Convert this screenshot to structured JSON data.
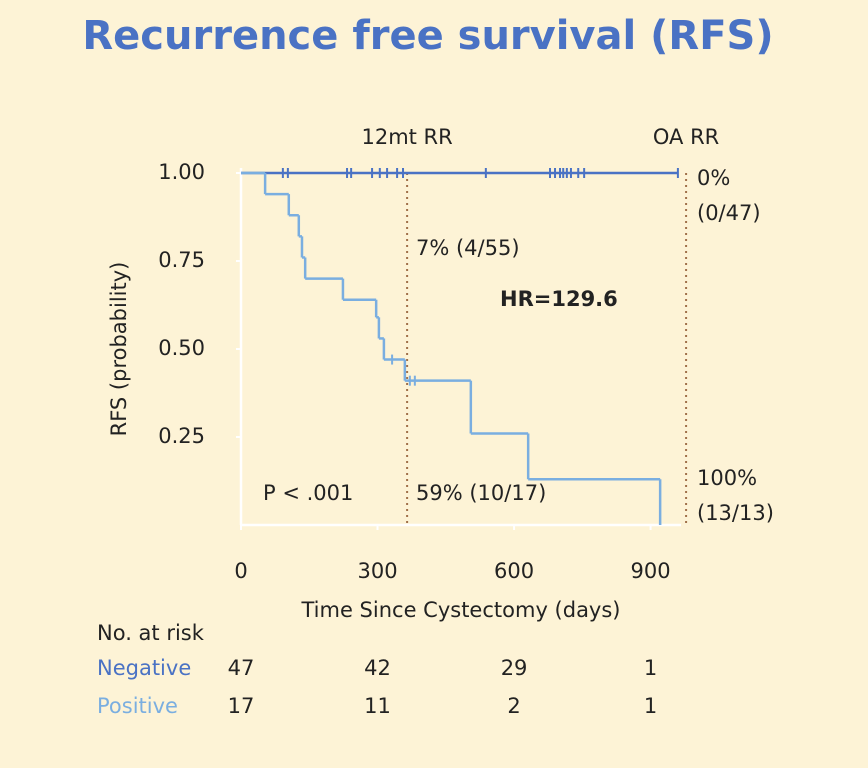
{
  "chart_data": {
    "type": "km",
    "title": "Recurrence free survival (RFS)",
    "x_label": "Time Since Cystectomy (days)",
    "y_label": "RFS (probability)",
    "xlim": [
      0,
      980
    ],
    "ylim": [
      0,
      1
    ],
    "xticks": [
      0,
      300,
      600,
      900
    ],
    "yticks": [
      {
        "value": 1,
        "label": "1.00"
      },
      {
        "value": 0.75,
        "label": "0.75"
      },
      {
        "value": 0.5,
        "label": "0.50"
      },
      {
        "value": 0.25,
        "label": "0.25"
      }
    ],
    "series": [
      {
        "name": "Negative",
        "color": "#4a72c4",
        "x": [
          0,
          960
        ],
        "values": [
          1,
          1
        ],
        "censor_x": [
          92,
          103,
          233,
          242,
          288,
          305,
          321,
          343,
          356,
          538,
          679,
          690,
          701,
          708,
          716,
          725,
          741,
          754,
          960
        ]
      },
      {
        "name": "Positive",
        "color": "#7aaee0",
        "x": [
          0,
          53,
          105,
          127,
          134,
          141,
          224,
          297,
          303,
          314,
          360,
          505,
          631,
          921
        ],
        "values": [
          1,
          0.94,
          0.88,
          0.82,
          0.76,
          0.7,
          0.64,
          0.59,
          0.53,
          0.47,
          0.41,
          0.26,
          0.13,
          0
        ],
        "censor_x": [
          332,
          371,
          382
        ]
      }
    ],
    "vlines": [
      {
        "x": 365,
        "label": "12mt RR"
      },
      {
        "x": 978,
        "label": "OA RR"
      }
    ],
    "annotations": [
      "0%",
      "(0/47)",
      "7% (4/55)",
      "HR=129.6",
      "P < .001",
      "59% (10/17)",
      "100%",
      "(13/13)"
    ],
    "risk_table": {
      "title": "No. at risk",
      "rows": [
        {
          "name": "Negative",
          "color": "#4a72c4",
          "values": [
            47,
            42,
            29,
            1
          ]
        },
        {
          "name": "Positive",
          "color": "#7aaee0",
          "values": [
            17,
            11,
            2,
            1
          ]
        }
      ]
    }
  }
}
